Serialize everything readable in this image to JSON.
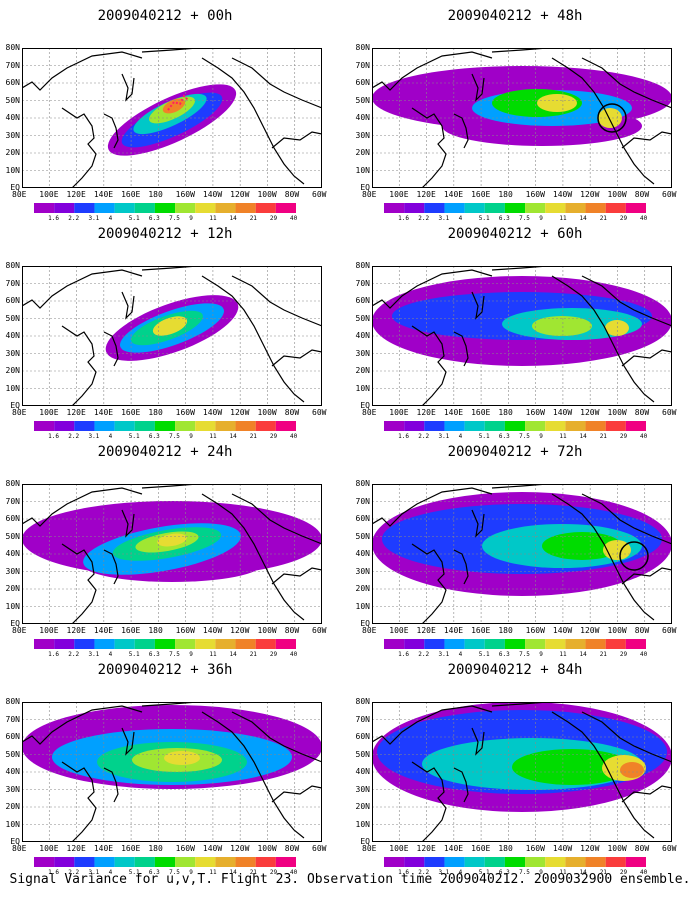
{
  "panels": [
    {
      "title": "2009040212 + 00h"
    },
    {
      "title": "2009040212 + 48h"
    },
    {
      "title": "2009040212 + 12h"
    },
    {
      "title": "2009040212 + 60h"
    },
    {
      "title": "2009040212 + 24h"
    },
    {
      "title": "2009040212 + 72h"
    },
    {
      "title": "2009040212 + 36h"
    },
    {
      "title": "2009040212 + 84h"
    }
  ],
  "lat_labels": [
    "80N",
    "70N",
    "60N",
    "50N",
    "40N",
    "30N",
    "20N",
    "10N",
    "EQ"
  ],
  "lon_labels": [
    "80E",
    "100E",
    "120E",
    "140E",
    "160E",
    "180",
    "160W",
    "140W",
    "120W",
    "100W",
    "80W",
    "60W"
  ],
  "colorbar": {
    "labels": [
      "1.6",
      "2.2",
      "3.1",
      "4",
      "5.1",
      "6.3",
      "7.5",
      "9",
      "11",
      "14",
      "21",
      "29",
      "40"
    ],
    "colors": [
      "#a000c8",
      "#8200dc",
      "#1e3cff",
      "#00a0ff",
      "#00c8c8",
      "#00d28c",
      "#00dc00",
      "#a0e632",
      "#e6dc32",
      "#e6af2d",
      "#f08228",
      "#fa3c3c",
      "#f00082"
    ]
  },
  "caption": "Signal Variance for u,v,T. Flight 23. Observation time 2009040212. 2009032900 ensemble."
}
